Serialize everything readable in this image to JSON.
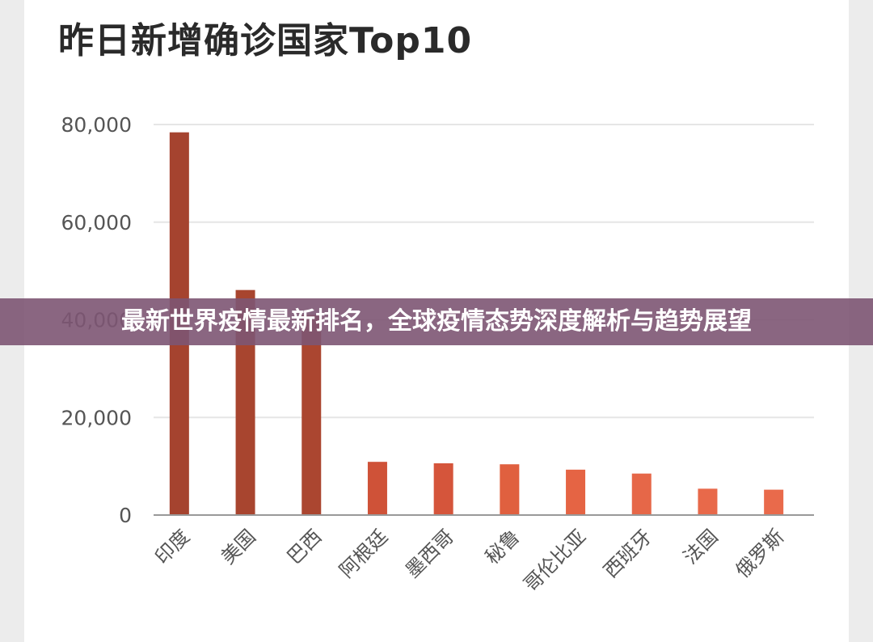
{
  "banner": "最新世界疫情最新排名，全球疫情态势深度解析与趋势展望",
  "chart_data": {
    "type": "bar",
    "title": "昨日新增确诊国家Top10",
    "categories": [
      "印度",
      "美国",
      "巴西",
      "阿根廷",
      "墨西哥",
      "秘鲁",
      "哥伦比亚",
      "西班牙",
      "法国",
      "俄罗斯"
    ],
    "values": [
      78400,
      46100,
      41000,
      10900,
      10600,
      10400,
      9300,
      8500,
      5400,
      5200
    ],
    "ylim": [
      0,
      80000
    ],
    "yticks": [
      0,
      20000,
      40000,
      60000,
      80000
    ],
    "ytick_labels": [
      "0",
      "20,000",
      "40,000",
      "60,000",
      "80,000"
    ],
    "grid": true,
    "colors": [
      "#a5432f",
      "#a8452f",
      "#ab4630",
      "#cf5238",
      "#d5553b",
      "#e0603f",
      "#e56444",
      "#e66748",
      "#e8694a",
      "#e96a4b"
    ]
  }
}
